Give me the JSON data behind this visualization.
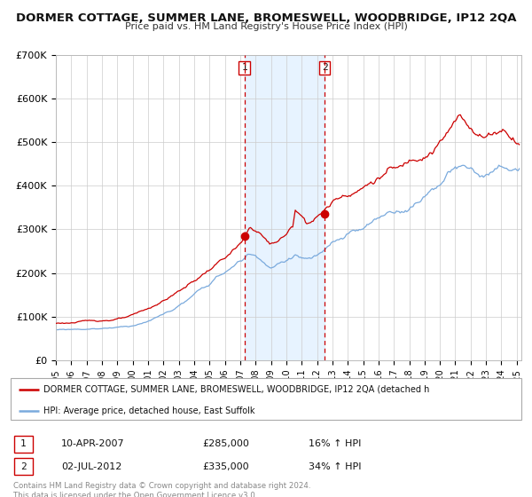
{
  "title": "DORMER COTTAGE, SUMMER LANE, BROMESWELL, WOODBRIDGE, IP12 2QA",
  "subtitle": "Price paid vs. HM Land Registry's House Price Index (HPI)",
  "ylim": [
    0,
    700000
  ],
  "xlim_start": 1995.0,
  "xlim_end": 2025.3,
  "yticks": [
    0,
    100000,
    200000,
    300000,
    400000,
    500000,
    600000,
    700000
  ],
  "ytick_labels": [
    "£0",
    "£100K",
    "£200K",
    "£300K",
    "£400K",
    "£500K",
    "£600K",
    "£700K"
  ],
  "grid_color": "#cccccc",
  "background_color": "#ffffff",
  "red_line_color": "#cc0000",
  "blue_line_color": "#7aaadd",
  "sale1_x": 2007.27,
  "sale1_y": 285000,
  "sale2_x": 2012.5,
  "sale2_y": 335000,
  "shade_color": "#ddeeff",
  "vline_color": "#cc0000",
  "legend1_text": "DORMER COTTAGE, SUMMER LANE, BROMESWELL, WOODBRIDGE, IP12 2QA (detached h",
  "legend2_text": "HPI: Average price, detached house, East Suffolk",
  "sale1_date": "10-APR-2007",
  "sale1_price": "£285,000",
  "sale1_hpi": "16% ↑ HPI",
  "sale2_date": "02-JUL-2012",
  "sale2_price": "£335,000",
  "sale2_hpi": "34% ↑ HPI",
  "footer_text": "Contains HM Land Registry data © Crown copyright and database right 2024.\nThis data is licensed under the Open Government Licence v3.0."
}
